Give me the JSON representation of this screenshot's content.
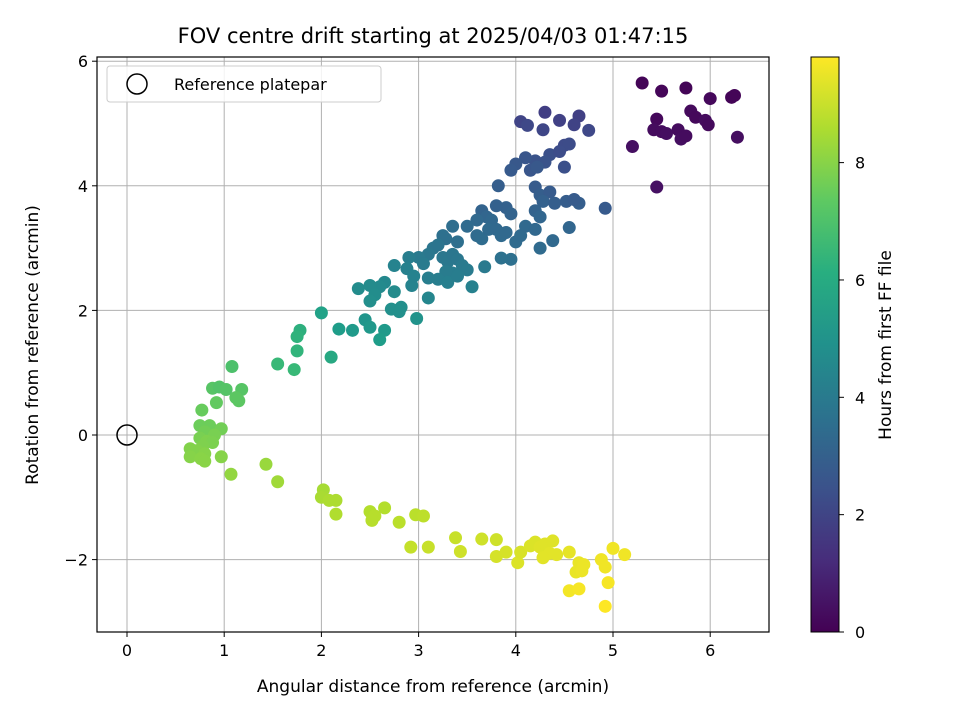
{
  "chart_data": {
    "type": "scatter",
    "title": "FOV centre drift starting at 2025/04/03 01:47:15",
    "xlabel": "Angular distance from reference (arcmin)",
    "ylabel": "Rotation from reference (arcmin)",
    "xlim": [
      -0.3,
      6.6
    ],
    "ylim": [
      -3.2,
      6.15
    ],
    "xticks": [
      "0",
      "1",
      "2",
      "3",
      "4",
      "5",
      "6"
    ],
    "yticks": [
      "−2",
      "0",
      "2",
      "4",
      "6"
    ],
    "grid": true,
    "legend": {
      "placement": "top-left",
      "entries": [
        "Reference platepar"
      ]
    },
    "reference_point": {
      "x": 0,
      "y": 0,
      "label": "Reference platepar"
    },
    "colorbar": {
      "label": "Hours from first FF file",
      "range": [
        0,
        9.8
      ],
      "ticks": [
        "0",
        "2",
        "4",
        "6",
        "8"
      ],
      "colormap": "viridis"
    },
    "points": [
      {
        "x": 5.3,
        "y": 5.65,
        "h": 0.1
      },
      {
        "x": 5.5,
        "y": 5.52,
        "h": 0.15
      },
      {
        "x": 5.75,
        "y": 5.57,
        "h": 0.1
      },
      {
        "x": 6.0,
        "y": 5.4,
        "h": 0.2
      },
      {
        "x": 6.22,
        "y": 5.42,
        "h": 0.1
      },
      {
        "x": 6.25,
        "y": 5.45,
        "h": 0.1
      },
      {
        "x": 5.45,
        "y": 5.07,
        "h": 0.2
      },
      {
        "x": 5.8,
        "y": 5.2,
        "h": 0.25
      },
      {
        "x": 5.85,
        "y": 5.1,
        "h": 0.2
      },
      {
        "x": 5.95,
        "y": 5.05,
        "h": 0.3
      },
      {
        "x": 5.98,
        "y": 4.98,
        "h": 0.25
      },
      {
        "x": 5.42,
        "y": 4.9,
        "h": 0.3
      },
      {
        "x": 5.5,
        "y": 4.87,
        "h": 0.3
      },
      {
        "x": 5.55,
        "y": 4.84,
        "h": 0.35
      },
      {
        "x": 5.67,
        "y": 4.9,
        "h": 0.3
      },
      {
        "x": 5.7,
        "y": 4.75,
        "h": 0.35
      },
      {
        "x": 5.75,
        "y": 4.8,
        "h": 0.3
      },
      {
        "x": 6.28,
        "y": 4.78,
        "h": 0.35
      },
      {
        "x": 5.2,
        "y": 4.63,
        "h": 0.4
      },
      {
        "x": 5.45,
        "y": 3.98,
        "h": 0.45
      },
      {
        "x": 4.3,
        "y": 5.18,
        "h": 1.8
      },
      {
        "x": 4.45,
        "y": 5.05,
        "h": 1.9
      },
      {
        "x": 4.65,
        "y": 5.12,
        "h": 1.85
      },
      {
        "x": 4.05,
        "y": 5.03,
        "h": 2.0
      },
      {
        "x": 4.12,
        "y": 4.97,
        "h": 2.1
      },
      {
        "x": 4.28,
        "y": 4.9,
        "h": 2.05
      },
      {
        "x": 4.6,
        "y": 4.98,
        "h": 1.95
      },
      {
        "x": 4.75,
        "y": 4.89,
        "h": 2.1
      },
      {
        "x": 4.5,
        "y": 4.65,
        "h": 2.2
      },
      {
        "x": 4.55,
        "y": 4.67,
        "h": 2.25
      },
      {
        "x": 4.35,
        "y": 4.5,
        "h": 2.4
      },
      {
        "x": 4.45,
        "y": 4.55,
        "h": 2.3
      },
      {
        "x": 4.2,
        "y": 4.4,
        "h": 2.5
      },
      {
        "x": 4.1,
        "y": 4.45,
        "h": 2.6
      },
      {
        "x": 4.0,
        "y": 4.35,
        "h": 2.7
      },
      {
        "x": 3.95,
        "y": 4.25,
        "h": 2.75
      },
      {
        "x": 4.3,
        "y": 4.38,
        "h": 2.5
      },
      {
        "x": 4.5,
        "y": 4.3,
        "h": 2.4
      },
      {
        "x": 4.15,
        "y": 4.25,
        "h": 2.6
      },
      {
        "x": 4.22,
        "y": 4.3,
        "h": 2.7
      },
      {
        "x": 3.82,
        "y": 4.0,
        "h": 2.9
      },
      {
        "x": 4.2,
        "y": 3.98,
        "h": 2.8
      },
      {
        "x": 4.25,
        "y": 3.85,
        "h": 2.9
      },
      {
        "x": 4.35,
        "y": 3.9,
        "h": 2.8
      },
      {
        "x": 4.28,
        "y": 3.75,
        "h": 3.0
      },
      {
        "x": 4.4,
        "y": 3.72,
        "h": 2.9
      },
      {
        "x": 4.52,
        "y": 3.75,
        "h": 2.85
      },
      {
        "x": 4.65,
        "y": 3.72,
        "h": 2.9
      },
      {
        "x": 4.6,
        "y": 3.78,
        "h": 2.8
      },
      {
        "x": 4.92,
        "y": 3.64,
        "h": 2.75
      },
      {
        "x": 4.2,
        "y": 3.6,
        "h": 3.1
      },
      {
        "x": 4.25,
        "y": 3.5,
        "h": 3.2
      },
      {
        "x": 3.9,
        "y": 3.65,
        "h": 3.0
      },
      {
        "x": 3.95,
        "y": 3.55,
        "h": 3.1
      },
      {
        "x": 3.8,
        "y": 3.68,
        "h": 3.0
      },
      {
        "x": 3.65,
        "y": 3.6,
        "h": 3.1
      },
      {
        "x": 3.7,
        "y": 3.5,
        "h": 3.2
      },
      {
        "x": 3.75,
        "y": 3.45,
        "h": 3.25
      },
      {
        "x": 3.6,
        "y": 3.45,
        "h": 3.3
      },
      {
        "x": 3.5,
        "y": 3.35,
        "h": 3.4
      },
      {
        "x": 3.35,
        "y": 3.35,
        "h": 3.5
      },
      {
        "x": 3.25,
        "y": 3.2,
        "h": 3.6
      },
      {
        "x": 3.28,
        "y": 3.15,
        "h": 3.6
      },
      {
        "x": 3.4,
        "y": 3.1,
        "h": 3.55
      },
      {
        "x": 3.6,
        "y": 3.2,
        "h": 3.4
      },
      {
        "x": 3.65,
        "y": 3.15,
        "h": 3.45
      },
      {
        "x": 3.72,
        "y": 3.3,
        "h": 3.35
      },
      {
        "x": 3.8,
        "y": 3.3,
        "h": 3.3
      },
      {
        "x": 3.85,
        "y": 3.2,
        "h": 3.35
      },
      {
        "x": 3.9,
        "y": 3.25,
        "h": 3.3
      },
      {
        "x": 4.0,
        "y": 3.1,
        "h": 3.4
      },
      {
        "x": 4.05,
        "y": 3.2,
        "h": 3.35
      },
      {
        "x": 4.1,
        "y": 3.35,
        "h": 3.3
      },
      {
        "x": 4.2,
        "y": 3.3,
        "h": 3.25
      },
      {
        "x": 4.25,
        "y": 3.0,
        "h": 3.4
      },
      {
        "x": 4.38,
        "y": 3.12,
        "h": 3.3
      },
      {
        "x": 4.55,
        "y": 3.33,
        "h": 3.2
      },
      {
        "x": 3.95,
        "y": 2.82,
        "h": 3.6
      },
      {
        "x": 3.85,
        "y": 2.84,
        "h": 3.65
      },
      {
        "x": 3.15,
        "y": 3.0,
        "h": 3.8
      },
      {
        "x": 3.2,
        "y": 3.05,
        "h": 3.75
      },
      {
        "x": 3.1,
        "y": 2.9,
        "h": 3.9
      },
      {
        "x": 3.0,
        "y": 2.85,
        "h": 4.0
      },
      {
        "x": 3.05,
        "y": 2.75,
        "h": 4.05
      },
      {
        "x": 3.25,
        "y": 2.85,
        "h": 3.9
      },
      {
        "x": 3.3,
        "y": 2.78,
        "h": 3.95
      },
      {
        "x": 3.35,
        "y": 2.9,
        "h": 3.85
      },
      {
        "x": 3.4,
        "y": 2.82,
        "h": 3.9
      },
      {
        "x": 3.45,
        "y": 2.72,
        "h": 4.0
      },
      {
        "x": 3.5,
        "y": 2.65,
        "h": 4.05
      },
      {
        "x": 3.35,
        "y": 2.6,
        "h": 4.1
      },
      {
        "x": 3.28,
        "y": 2.62,
        "h": 4.1
      },
      {
        "x": 3.2,
        "y": 2.5,
        "h": 4.2
      },
      {
        "x": 3.1,
        "y": 2.52,
        "h": 4.2
      },
      {
        "x": 3.3,
        "y": 2.45,
        "h": 4.25
      },
      {
        "x": 3.4,
        "y": 2.55,
        "h": 4.15
      },
      {
        "x": 3.55,
        "y": 2.38,
        "h": 4.3
      },
      {
        "x": 3.68,
        "y": 2.7,
        "h": 4.0
      },
      {
        "x": 2.9,
        "y": 2.85,
        "h": 4.2
      },
      {
        "x": 2.88,
        "y": 2.67,
        "h": 4.3
      },
      {
        "x": 2.93,
        "y": 2.4,
        "h": 4.4
      },
      {
        "x": 2.95,
        "y": 2.55,
        "h": 4.35
      },
      {
        "x": 3.1,
        "y": 2.2,
        "h": 4.5
      },
      {
        "x": 2.75,
        "y": 2.72,
        "h": 4.4
      },
      {
        "x": 2.65,
        "y": 2.45,
        "h": 4.6
      },
      {
        "x": 2.6,
        "y": 2.38,
        "h": 4.65
      },
      {
        "x": 2.5,
        "y": 2.4,
        "h": 4.7
      },
      {
        "x": 2.38,
        "y": 2.35,
        "h": 4.75
      },
      {
        "x": 2.55,
        "y": 2.25,
        "h": 4.8
      },
      {
        "x": 2.5,
        "y": 2.15,
        "h": 4.85
      },
      {
        "x": 2.75,
        "y": 2.3,
        "h": 4.7
      },
      {
        "x": 2.72,
        "y": 2.02,
        "h": 4.9
      },
      {
        "x": 2.82,
        "y": 2.05,
        "h": 4.85
      },
      {
        "x": 2.8,
        "y": 1.98,
        "h": 4.9
      },
      {
        "x": 2.98,
        "y": 1.87,
        "h": 5.0
      },
      {
        "x": 2.45,
        "y": 1.85,
        "h": 5.1
      },
      {
        "x": 2.5,
        "y": 1.73,
        "h": 5.2
      },
      {
        "x": 2.32,
        "y": 1.68,
        "h": 5.3
      },
      {
        "x": 2.18,
        "y": 1.7,
        "h": 5.4
      },
      {
        "x": 2.65,
        "y": 1.68,
        "h": 5.3
      },
      {
        "x": 2.6,
        "y": 1.53,
        "h": 5.4
      },
      {
        "x": 2.0,
        "y": 1.96,
        "h": 5.6
      },
      {
        "x": 2.1,
        "y": 1.25,
        "h": 5.9
      },
      {
        "x": 1.78,
        "y": 1.68,
        "h": 6.2
      },
      {
        "x": 1.75,
        "y": 1.58,
        "h": 6.3
      },
      {
        "x": 1.75,
        "y": 1.35,
        "h": 6.4
      },
      {
        "x": 1.55,
        "y": 1.14,
        "h": 6.6
      },
      {
        "x": 1.72,
        "y": 1.05,
        "h": 6.6
      },
      {
        "x": 1.08,
        "y": 1.1,
        "h": 7.0
      },
      {
        "x": 0.88,
        "y": 0.75,
        "h": 7.2
      },
      {
        "x": 0.95,
        "y": 0.77,
        "h": 7.1
      },
      {
        "x": 1.02,
        "y": 0.73,
        "h": 7.15
      },
      {
        "x": 1.18,
        "y": 0.73,
        "h": 7.2
      },
      {
        "x": 1.12,
        "y": 0.6,
        "h": 7.3
      },
      {
        "x": 1.15,
        "y": 0.55,
        "h": 7.3
      },
      {
        "x": 0.92,
        "y": 0.52,
        "h": 7.4
      },
      {
        "x": 0.77,
        "y": 0.4,
        "h": 7.5
      },
      {
        "x": 0.75,
        "y": 0.15,
        "h": 7.6
      },
      {
        "x": 0.85,
        "y": 0.15,
        "h": 7.6
      },
      {
        "x": 0.97,
        "y": 0.1,
        "h": 7.7
      },
      {
        "x": 0.8,
        "y": 0.05,
        "h": 7.7
      },
      {
        "x": 0.9,
        "y": 0.0,
        "h": 7.8
      },
      {
        "x": 0.75,
        "y": -0.05,
        "h": 7.8
      },
      {
        "x": 0.82,
        "y": -0.1,
        "h": 7.9
      },
      {
        "x": 0.88,
        "y": -0.12,
        "h": 7.85
      },
      {
        "x": 0.78,
        "y": -0.18,
        "h": 7.9
      },
      {
        "x": 0.65,
        "y": -0.22,
        "h": 7.95
      },
      {
        "x": 0.72,
        "y": -0.25,
        "h": 7.95
      },
      {
        "x": 0.8,
        "y": -0.3,
        "h": 8.0
      },
      {
        "x": 0.65,
        "y": -0.35,
        "h": 8.0
      },
      {
        "x": 0.76,
        "y": -0.38,
        "h": 8.05
      },
      {
        "x": 0.8,
        "y": -0.42,
        "h": 8.05
      },
      {
        "x": 0.97,
        "y": -0.35,
        "h": 8.0
      },
      {
        "x": 1.07,
        "y": -0.63,
        "h": 8.2
      },
      {
        "x": 1.43,
        "y": -0.47,
        "h": 8.3
      },
      {
        "x": 1.55,
        "y": -0.75,
        "h": 8.4
      },
      {
        "x": 2.02,
        "y": -0.88,
        "h": 8.5
      },
      {
        "x": 2.0,
        "y": -1.0,
        "h": 8.55
      },
      {
        "x": 2.08,
        "y": -1.05,
        "h": 8.6
      },
      {
        "x": 2.15,
        "y": -1.05,
        "h": 8.6
      },
      {
        "x": 2.15,
        "y": -1.27,
        "h": 8.65
      },
      {
        "x": 2.5,
        "y": -1.23,
        "h": 8.7
      },
      {
        "x": 2.55,
        "y": -1.3,
        "h": 8.75
      },
      {
        "x": 2.52,
        "y": -1.37,
        "h": 8.75
      },
      {
        "x": 2.65,
        "y": -1.17,
        "h": 8.7
      },
      {
        "x": 2.8,
        "y": -1.4,
        "h": 8.8
      },
      {
        "x": 2.97,
        "y": -1.28,
        "h": 8.8
      },
      {
        "x": 3.05,
        "y": -1.3,
        "h": 8.85
      },
      {
        "x": 2.92,
        "y": -1.8,
        "h": 8.95
      },
      {
        "x": 3.1,
        "y": -1.8,
        "h": 9.0
      },
      {
        "x": 3.38,
        "y": -1.65,
        "h": 9.0
      },
      {
        "x": 3.43,
        "y": -1.87,
        "h": 9.1
      },
      {
        "x": 3.65,
        "y": -1.67,
        "h": 9.1
      },
      {
        "x": 3.8,
        "y": -1.68,
        "h": 9.1
      },
      {
        "x": 3.8,
        "y": -1.95,
        "h": 9.2
      },
      {
        "x": 3.9,
        "y": -1.88,
        "h": 9.2
      },
      {
        "x": 4.02,
        "y": -2.05,
        "h": 9.3
      },
      {
        "x": 4.05,
        "y": -1.88,
        "h": 9.25
      },
      {
        "x": 4.15,
        "y": -1.78,
        "h": 9.3
      },
      {
        "x": 4.2,
        "y": -1.72,
        "h": 9.3
      },
      {
        "x": 4.25,
        "y": -1.8,
        "h": 9.35
      },
      {
        "x": 4.3,
        "y": -1.75,
        "h": 9.35
      },
      {
        "x": 4.35,
        "y": -1.9,
        "h": 9.4
      },
      {
        "x": 4.38,
        "y": -1.7,
        "h": 9.35
      },
      {
        "x": 4.42,
        "y": -1.92,
        "h": 9.4
      },
      {
        "x": 4.28,
        "y": -1.97,
        "h": 9.4
      },
      {
        "x": 4.55,
        "y": -1.88,
        "h": 9.45
      },
      {
        "x": 4.65,
        "y": -2.05,
        "h": 9.5
      },
      {
        "x": 4.62,
        "y": -2.2,
        "h": 9.5
      },
      {
        "x": 4.68,
        "y": -2.18,
        "h": 9.55
      },
      {
        "x": 4.7,
        "y": -2.08,
        "h": 9.55
      },
      {
        "x": 4.88,
        "y": -2.0,
        "h": 9.6
      },
      {
        "x": 4.92,
        "y": -2.12,
        "h": 9.6
      },
      {
        "x": 5.0,
        "y": -1.82,
        "h": 9.6
      },
      {
        "x": 5.12,
        "y": -1.92,
        "h": 9.6
      },
      {
        "x": 4.55,
        "y": -2.5,
        "h": 9.65
      },
      {
        "x": 4.65,
        "y": -2.47,
        "h": 9.7
      },
      {
        "x": 4.95,
        "y": -2.37,
        "h": 9.7
      },
      {
        "x": 4.92,
        "y": -2.75,
        "h": 9.8
      }
    ]
  }
}
